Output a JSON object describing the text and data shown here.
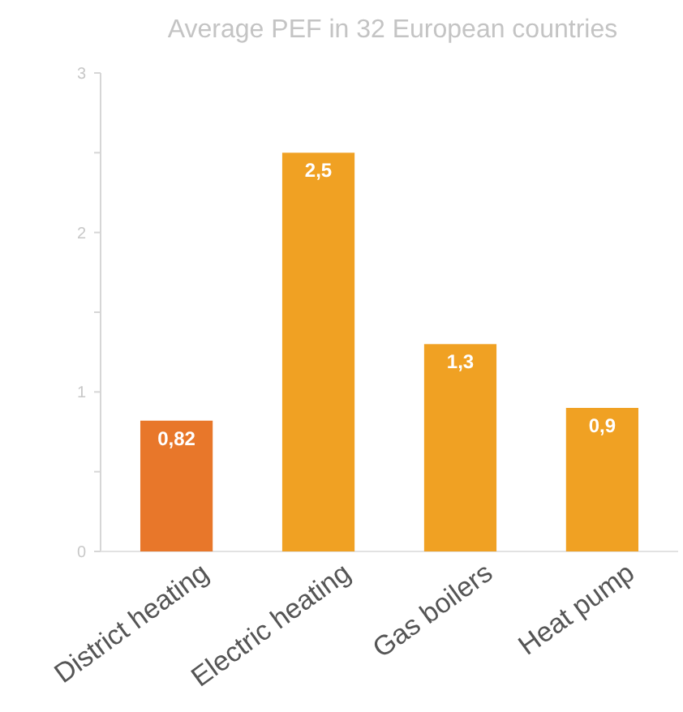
{
  "chart_data": {
    "type": "bar",
    "title": "Average PEF in 32 European countries",
    "categories": [
      "District heating",
      "Electric heating",
      "Gas boilers",
      "Heat pump"
    ],
    "values": [
      0.82,
      2.5,
      1.3,
      0.9
    ],
    "colors": [
      "#e8772a",
      "#f0a123",
      "#f0a123",
      "#f0a123"
    ],
    "value_labels": [
      "0,82",
      "2,5",
      "1,3",
      "0,9"
    ],
    "ylim": [
      0,
      3
    ],
    "yticks": [
      0,
      {
        "value": 0.5,
        "label": null
      },
      1,
      {
        "value": 1.5,
        "label": null
      },
      2,
      {
        "value": 2.5,
        "label": null
      },
      3
    ],
    "grid": false
  }
}
